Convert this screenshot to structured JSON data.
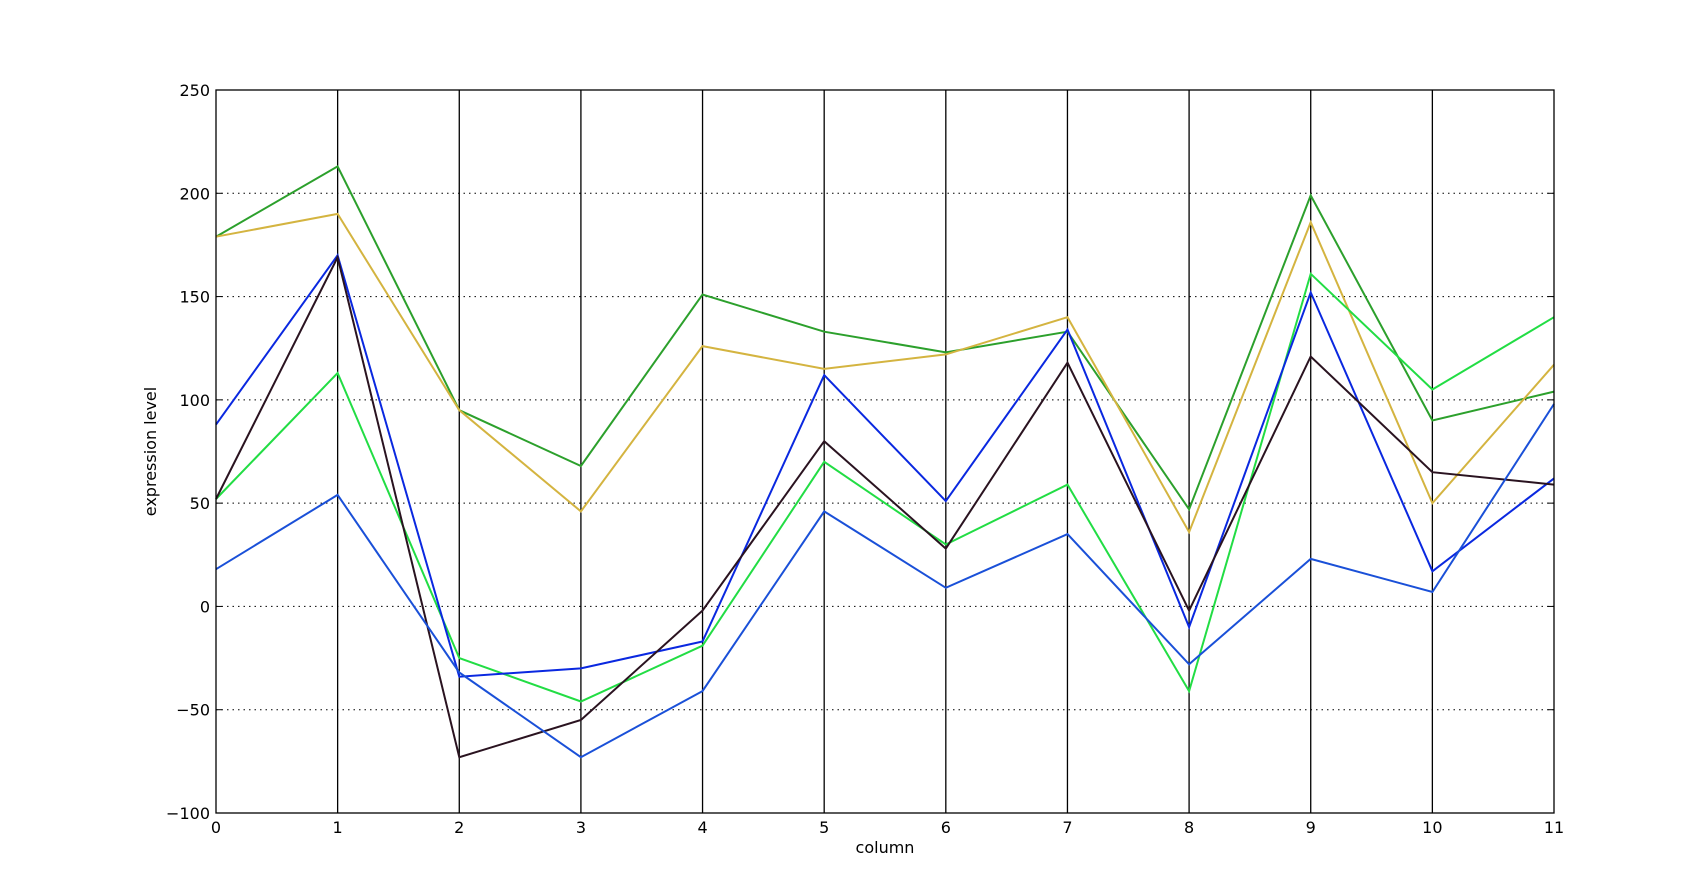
{
  "chart_data": {
    "type": "line",
    "title": "",
    "xlabel": "column",
    "ylabel": "expression level",
    "xlim": [
      0,
      11
    ],
    "ylim": [
      -100,
      250
    ],
    "xticks": [
      0,
      1,
      2,
      3,
      4,
      5,
      6,
      7,
      8,
      9,
      10,
      11
    ],
    "xtick_labels": [
      "0",
      "1",
      "2",
      "3",
      "4",
      "5",
      "6",
      "7",
      "8",
      "9",
      "10",
      "11"
    ],
    "yticks": [
      -100,
      -50,
      0,
      50,
      100,
      150,
      200,
      250
    ],
    "ytick_labels": [
      "−100",
      "−50",
      "0",
      "50",
      "100",
      "150",
      "200",
      "250"
    ],
    "grid": {
      "horizontal": "dotted",
      "vertical": "solid"
    },
    "legend": "none",
    "x": [
      0,
      1,
      2,
      3,
      4,
      5,
      6,
      7,
      8,
      9,
      10,
      11
    ],
    "series": [
      {
        "color": "#2ca02c",
        "values": [
          179,
          213,
          95,
          68,
          151,
          133,
          123,
          133,
          47,
          199,
          90,
          104
        ]
      },
      {
        "color": "#d4b440",
        "values": [
          179,
          190,
          95,
          46,
          126,
          115,
          122,
          140,
          36,
          186,
          50,
          117
        ]
      },
      {
        "color": "#22dd44",
        "values": [
          52,
          113,
          -25,
          -46,
          -19,
          70,
          30,
          59,
          -41,
          161,
          105,
          140
        ]
      },
      {
        "color": "#0a28e0",
        "values": [
          88,
          170,
          -34,
          -30,
          -17,
          112,
          51,
          134,
          -10,
          152,
          17,
          62
        ]
      },
      {
        "color": "#2a1320",
        "values": [
          52,
          169,
          -73,
          -55,
          -2,
          80,
          28,
          118,
          -2,
          121,
          65,
          59
        ]
      },
      {
        "color": "#1a50d8",
        "values": [
          18,
          54,
          -32,
          -73,
          -41,
          46,
          9,
          35,
          -28,
          23,
          7,
          98
        ]
      }
    ]
  }
}
